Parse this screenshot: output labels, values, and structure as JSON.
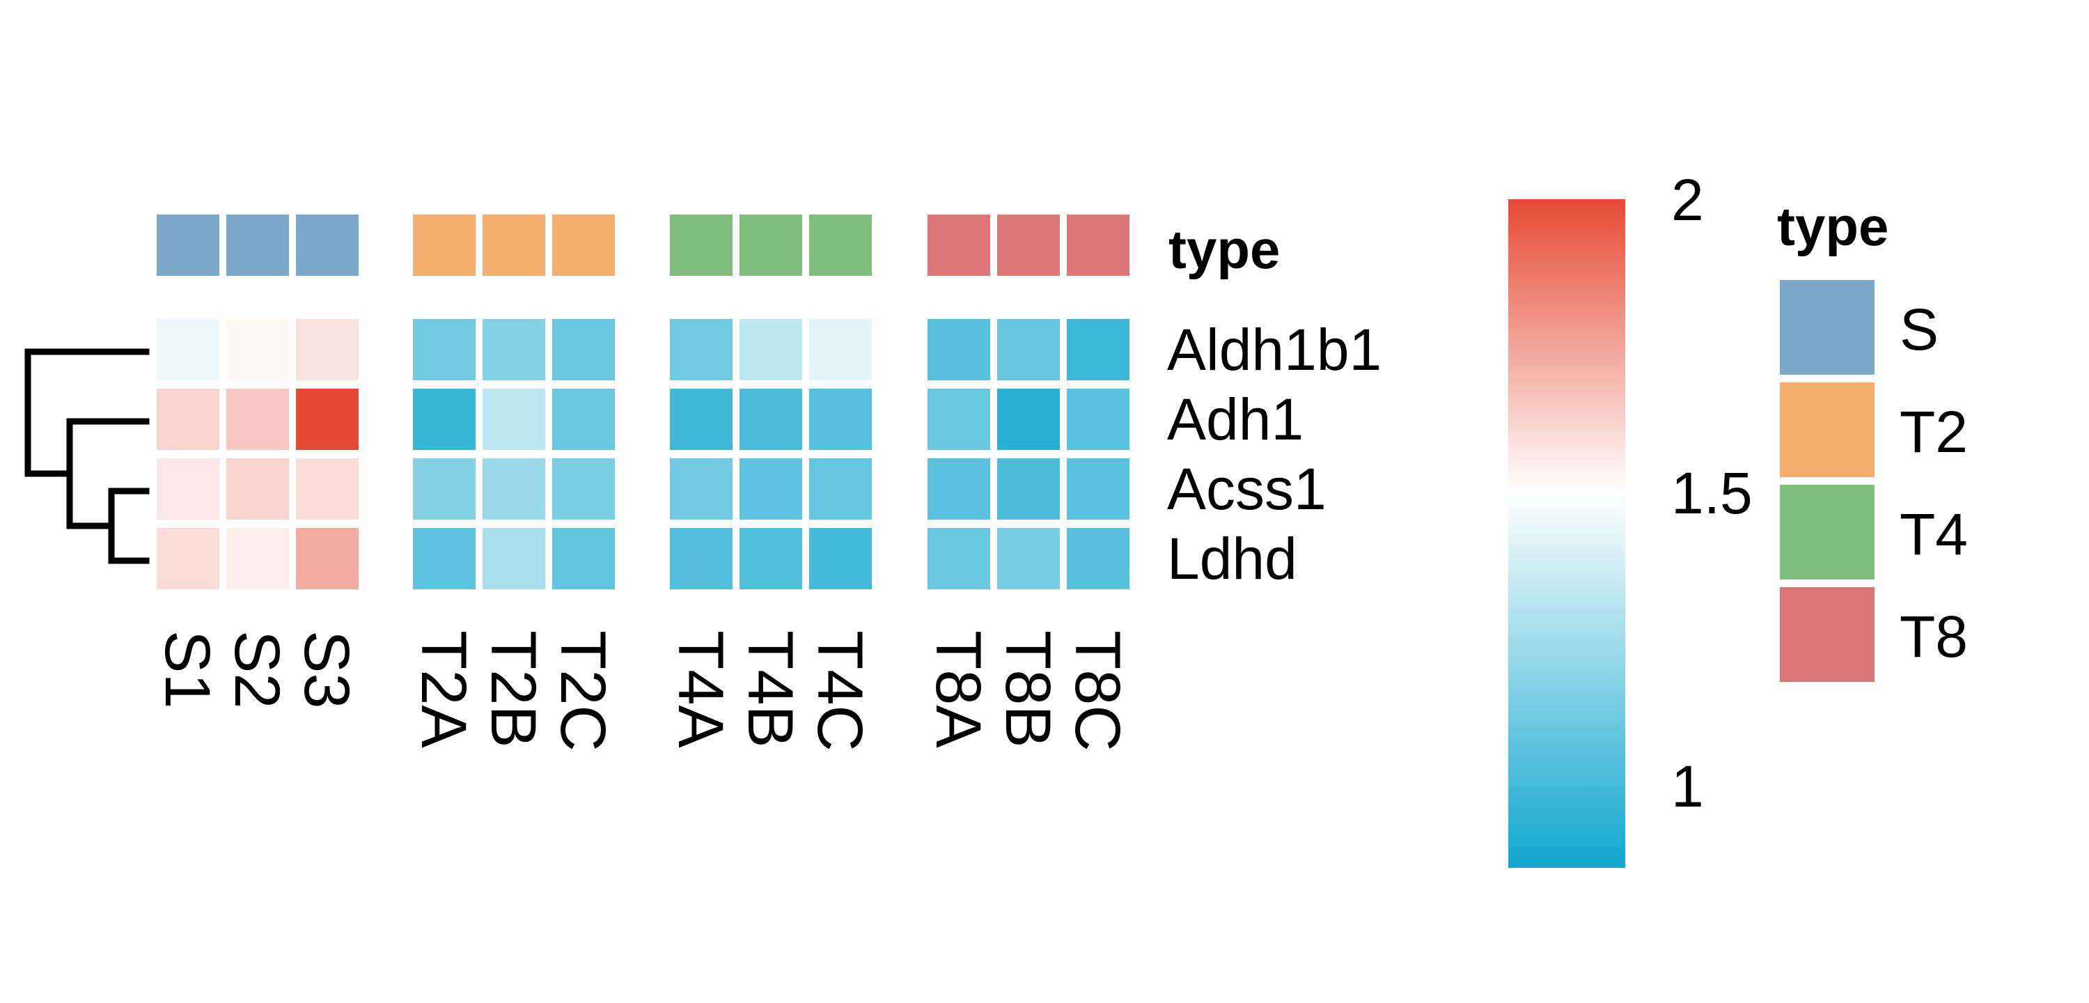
{
  "chart_data": {
    "type": "heatmap",
    "rows": [
      "Aldh1b1",
      "Adh1",
      "Acss1",
      "Ldhd"
    ],
    "columns": [
      "S1",
      "S2",
      "S3",
      "T2A",
      "T2B",
      "T2C",
      "T4A",
      "T4B",
      "T4C",
      "T8A",
      "T8B",
      "T8C"
    ],
    "column_groups": [
      {
        "name": "S",
        "columns": [
          "S1",
          "S2",
          "S3"
        ],
        "color": "#7BA8C9"
      },
      {
        "name": "T2",
        "columns": [
          "T2A",
          "T2B",
          "T2C"
        ],
        "color": "#F3AE70"
      },
      {
        "name": "T4",
        "columns": [
          "T4A",
          "T4B",
          "T4C"
        ],
        "color": "#80BE7E"
      },
      {
        "name": "T8",
        "columns": [
          "T8A",
          "T8B",
          "T8C"
        ],
        "color": "#DD7678"
      }
    ],
    "values": [
      [
        1.45,
        1.52,
        1.58,
        1.12,
        1.17,
        1.1,
        1.12,
        1.32,
        1.42,
        1.05,
        1.09,
        0.98
      ],
      [
        1.62,
        1.65,
        2.0,
        0.97,
        1.32,
        1.1,
        0.99,
        1.02,
        1.05,
        1.1,
        0.93,
        1.06
      ],
      [
        1.56,
        1.62,
        1.59,
        1.17,
        1.23,
        1.15,
        1.12,
        1.07,
        1.09,
        1.06,
        1.02,
        1.06
      ],
      [
        1.6,
        1.55,
        1.73,
        1.07,
        1.27,
        1.08,
        1.04,
        1.03,
        1.0,
        1.1,
        1.14,
        1.05
      ]
    ],
    "annotation_title": "type",
    "colorbar": {
      "ticks": [
        1,
        1.5,
        2
      ],
      "tick_labels": [
        "1",
        "1.5",
        "2"
      ],
      "range": [
        0.86,
        2.0
      ],
      "mid_value": 1.5,
      "colors": {
        "low": "#10A6CE",
        "mid": "#FFFFFF",
        "high": "#E64A33"
      }
    },
    "legend": {
      "title": "type",
      "items": [
        {
          "label": "S",
          "color": "#7BA8C9"
        },
        {
          "label": "T2",
          "color": "#F3AE70"
        },
        {
          "label": "T4",
          "color": "#80BE7E"
        },
        {
          "label": "T8",
          "color": "#DD7678"
        }
      ]
    },
    "row_dendrogram": true
  }
}
